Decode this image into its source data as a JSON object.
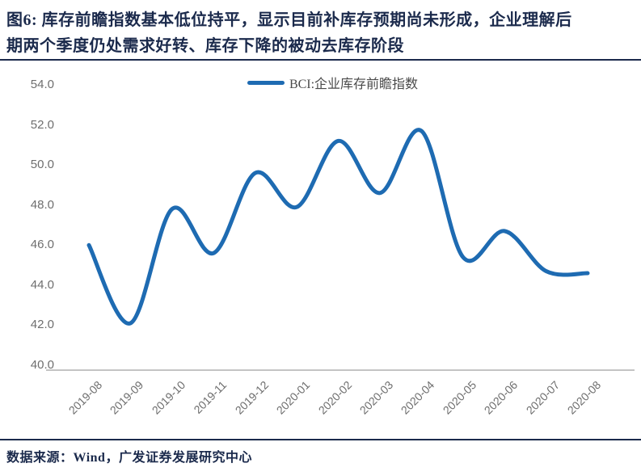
{
  "figure": {
    "title": {
      "line1": "图6: 库存前瞻指数基本低位持平，显示目前补库存预期尚未形成，企业理解后",
      "line2": "期两个季度仍处需求好转、库存下降的被动去库存阶段"
    },
    "source": "数据来源：Wind，广发证券发展研究中心"
  },
  "colors": {
    "line": "#1e6bb2",
    "title": "#1b2a4c",
    "axis_label": "#6e6e6e",
    "axis_line": "#c4c4c4"
  },
  "chart_data": {
    "type": "line",
    "title": "",
    "xlabel": "",
    "ylabel": "",
    "categories": [
      "2019-08",
      "2019-09",
      "2019-10",
      "2019-11",
      "2019-12",
      "2020-01",
      "2020-02",
      "2020-03",
      "2020-04",
      "2020-05",
      "2020-06",
      "2020-07",
      "2020-08"
    ],
    "series": [
      {
        "name": "BCI:企业库存前瞻指数",
        "values": [
          46.0,
          42.1,
          47.8,
          45.6,
          49.6,
          47.9,
          51.2,
          48.6,
          51.7,
          45.4,
          46.7,
          44.7,
          44.6
        ]
      }
    ],
    "ylim": [
      40.0,
      54.0
    ],
    "ytick_interval": 2.0,
    "yticks": [
      "54.0",
      "52.0",
      "50.0",
      "48.0",
      "46.0",
      "44.0",
      "42.0",
      "40.0"
    ],
    "grid": false,
    "smoothed_line": true,
    "legend_position": "top-center"
  }
}
